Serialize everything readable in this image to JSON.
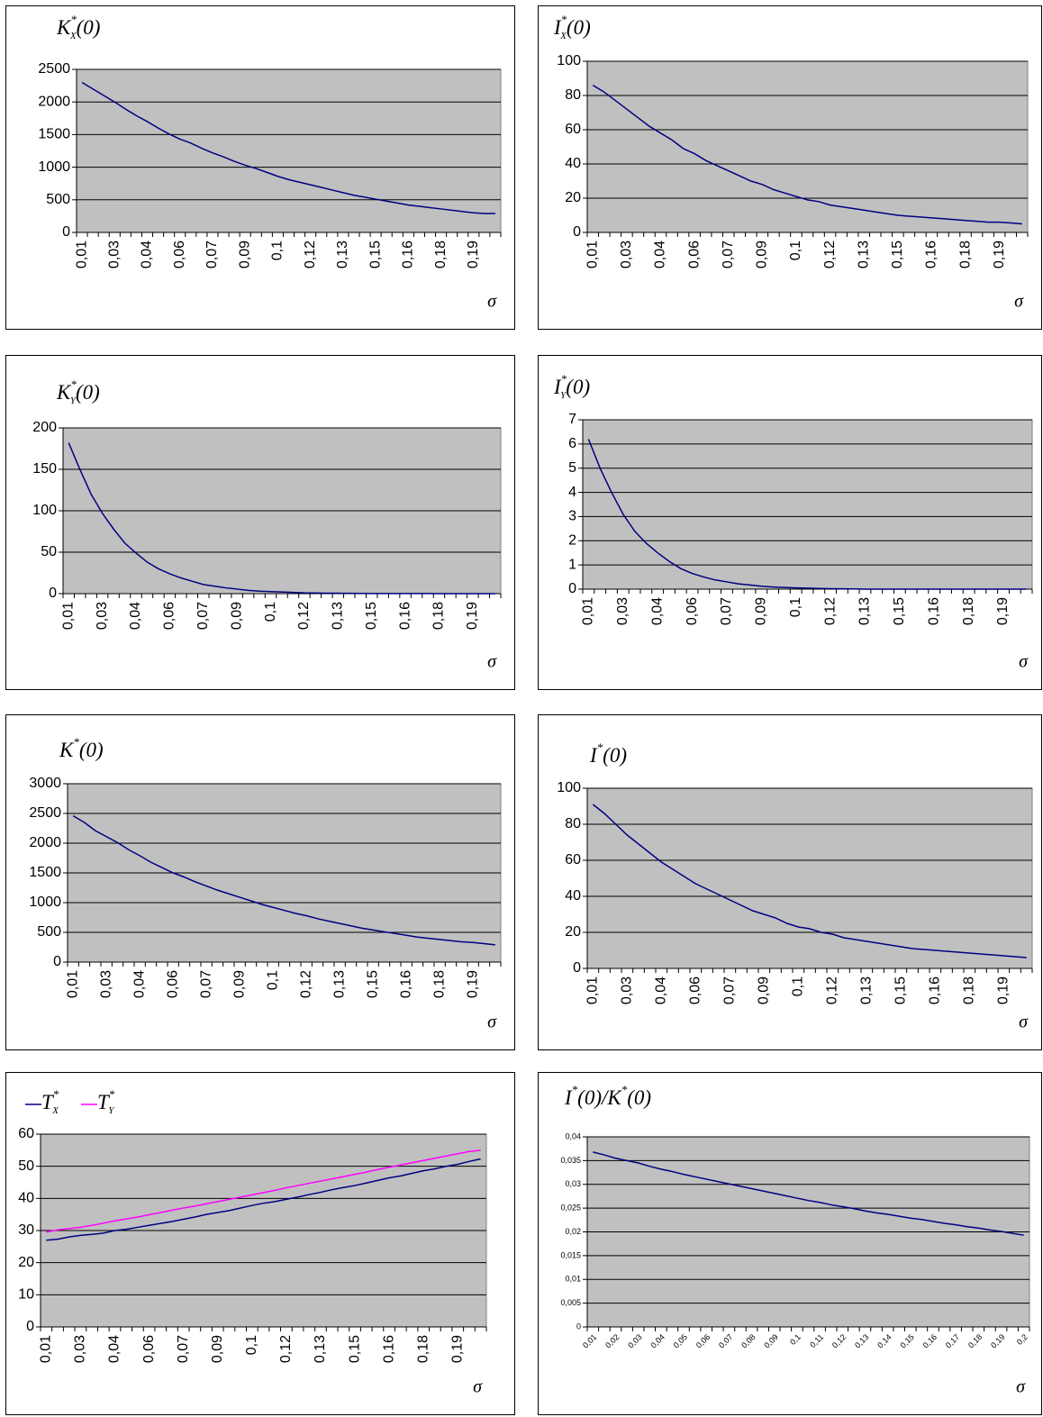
{
  "chart_data": [
    {
      "type": "line",
      "title": [
        {
          "text": "K"
        },
        {
          "text": "*",
          "sup": true
        },
        {
          "text": "X",
          "sub": true
        },
        {
          "text": "(0)"
        }
      ],
      "xlabel": "σ",
      "categories": [
        "0,01",
        null,
        null,
        "0,03",
        null,
        null,
        "0,04",
        null,
        null,
        "0,06",
        null,
        null,
        "0,07",
        null,
        null,
        "0,09",
        null,
        null,
        "0,1",
        null,
        null,
        "0,12",
        null,
        null,
        "0,13",
        null,
        null,
        "0,15",
        null,
        null,
        "0,16",
        null,
        null,
        "0,18",
        null,
        null,
        "0,19",
        null,
        null
      ],
      "series": [
        {
          "color": "#000080",
          "values": [
            2300,
            2200,
            2100,
            2000,
            1890,
            1790,
            1700,
            1600,
            1510,
            1430,
            1370,
            1290,
            1220,
            1160,
            1090,
            1030,
            980,
            920,
            860,
            810,
            770,
            730,
            690,
            650,
            610,
            570,
            540,
            510,
            480,
            450,
            420,
            400,
            380,
            360,
            340,
            320,
            300,
            290,
            290
          ]
        }
      ],
      "ylim": [
        0,
        2500
      ],
      "yticks": [
        0,
        500,
        1000,
        1500,
        2000,
        2500
      ],
      "grid": true
    },
    {
      "type": "line",
      "title": [
        {
          "text": "I"
        },
        {
          "text": "*",
          "sup": true
        },
        {
          "text": "X",
          "sub": true
        },
        {
          "text": "(0)"
        }
      ],
      "xlabel": "σ",
      "categories": [
        "0,01",
        null,
        null,
        "0,03",
        null,
        null,
        "0,04",
        null,
        null,
        "0,06",
        null,
        null,
        "0,07",
        null,
        null,
        "0,09",
        null,
        null,
        "0,1",
        null,
        null,
        "0,12",
        null,
        null,
        "0,13",
        null,
        null,
        "0,15",
        null,
        null,
        "0,16",
        null,
        null,
        "0,18",
        null,
        null,
        "0,19",
        null,
        null
      ],
      "series": [
        {
          "color": "#000080",
          "values": [
            86,
            82,
            77,
            72,
            67,
            62,
            58,
            54,
            49,
            46,
            42,
            39,
            36,
            33,
            30,
            28,
            25,
            23,
            21,
            19,
            18,
            16,
            15,
            14,
            13,
            12,
            11,
            10,
            9.5,
            9,
            8.5,
            8,
            7.5,
            7,
            6.5,
            6,
            6,
            5.5,
            5
          ]
        }
      ],
      "ylim": [
        0,
        100
      ],
      "yticks": [
        0,
        20,
        40,
        60,
        80,
        100
      ],
      "grid": true
    },
    {
      "type": "line",
      "title": [
        {
          "text": "K"
        },
        {
          "text": "*",
          "sup": true
        },
        {
          "text": "Y",
          "sub": true
        },
        {
          "text": "(0)"
        }
      ],
      "xlabel": "σ",
      "categories": [
        "0,01",
        null,
        null,
        "0,03",
        null,
        null,
        "0,04",
        null,
        null,
        "0,06",
        null,
        null,
        "0,07",
        null,
        null,
        "0,09",
        null,
        null,
        "0,1",
        null,
        null,
        "0,12",
        null,
        null,
        "0,13",
        null,
        null,
        "0,15",
        null,
        null,
        "0,16",
        null,
        null,
        "0,18",
        null,
        null,
        "0,19",
        null,
        null
      ],
      "series": [
        {
          "color": "#000080",
          "values": [
            182,
            150,
            120,
            97,
            78,
            61,
            49,
            38,
            30,
            24,
            19,
            15,
            11,
            9,
            7,
            5.5,
            4,
            3,
            2.5,
            2,
            1.5,
            1,
            0.8,
            0.6,
            0.5,
            0.4,
            0.3,
            0.2,
            0.2,
            0.1,
            0.1,
            0.1,
            0.1,
            0,
            0,
            0,
            0,
            0,
            0
          ]
        }
      ],
      "ylim": [
        0,
        200
      ],
      "yticks": [
        0,
        50,
        100,
        150,
        200
      ],
      "grid": true
    },
    {
      "type": "line",
      "title": [
        {
          "text": "I"
        },
        {
          "text": "*",
          "sup": true
        },
        {
          "text": "Y",
          "sub": true
        },
        {
          "text": "(0)"
        }
      ],
      "xlabel": "σ",
      "categories": [
        "0,01",
        null,
        null,
        "0,03",
        null,
        null,
        "0,04",
        null,
        null,
        "0,06",
        null,
        null,
        "0,07",
        null,
        null,
        "0,09",
        null,
        null,
        "0,1",
        null,
        null,
        "0,12",
        null,
        null,
        "0,13",
        null,
        null,
        "0,15",
        null,
        null,
        "0,16",
        null,
        null,
        "0,18",
        null,
        null,
        "0,19",
        null,
        null
      ],
      "series": [
        {
          "color": "#000080",
          "values": [
            6.2,
            5,
            4,
            3.1,
            2.4,
            1.9,
            1.5,
            1.15,
            0.85,
            0.65,
            0.5,
            0.38,
            0.3,
            0.22,
            0.17,
            0.12,
            0.09,
            0.07,
            0.05,
            0.04,
            0.03,
            0.02,
            0.015,
            0.01,
            0,
            0,
            0,
            0,
            0,
            0,
            0,
            0,
            0,
            0,
            0,
            0,
            0,
            0,
            0
          ]
        }
      ],
      "ylim": [
        0,
        7
      ],
      "yticks": [
        0,
        1,
        2,
        3,
        4,
        5,
        6,
        7
      ],
      "grid": true
    },
    {
      "type": "line",
      "title": [
        {
          "text": "K"
        },
        {
          "text": "*",
          "sup": true
        },
        {
          "text": "(0)"
        }
      ],
      "xlabel": "σ",
      "categories": [
        "0,01",
        null,
        null,
        "0,03",
        null,
        null,
        "0,04",
        null,
        null,
        "0,06",
        null,
        null,
        "0,07",
        null,
        null,
        "0,09",
        null,
        null,
        "0,1",
        null,
        null,
        "0,12",
        null,
        null,
        "0,13",
        null,
        null,
        "0,15",
        null,
        null,
        "0,16",
        null,
        null,
        "0,18",
        null,
        null,
        "0,19",
        null,
        null
      ],
      "series": [
        {
          "color": "#000080",
          "values": [
            2460,
            2350,
            2210,
            2110,
            2010,
            1890,
            1790,
            1680,
            1590,
            1500,
            1430,
            1350,
            1280,
            1210,
            1150,
            1090,
            1030,
            970,
            920,
            870,
            820,
            780,
            730,
            690,
            650,
            610,
            570,
            540,
            510,
            480,
            450,
            420,
            400,
            380,
            360,
            340,
            330,
            310,
            290
          ]
        }
      ],
      "ylim": [
        0,
        3000
      ],
      "yticks": [
        0,
        500,
        1000,
        1500,
        2000,
        2500,
        3000
      ],
      "grid": true
    },
    {
      "type": "line",
      "title": [
        {
          "text": "I"
        },
        {
          "text": "*",
          "sup": true
        },
        {
          "text": "(0)"
        }
      ],
      "xlabel": "σ",
      "categories": [
        "0,01",
        null,
        null,
        "0,03",
        null,
        null,
        "0,04",
        null,
        null,
        "0,06",
        null,
        null,
        "0,07",
        null,
        null,
        "0,09",
        null,
        null,
        "0,1",
        null,
        null,
        "0,12",
        null,
        null,
        "0,13",
        null,
        null,
        "0,15",
        null,
        null,
        "0,16",
        null,
        null,
        "0,18",
        null,
        null,
        "0,19",
        null,
        null
      ],
      "series": [
        {
          "color": "#000080",
          "values": [
            91,
            86,
            80,
            74,
            69,
            64,
            59,
            55,
            51,
            47,
            44,
            41,
            38,
            35,
            32,
            30,
            28,
            25,
            23,
            22,
            20,
            19,
            17,
            16,
            15,
            14,
            13,
            12,
            11,
            10.5,
            10,
            9.5,
            9,
            8.5,
            8,
            7.5,
            7,
            6.5,
            6
          ]
        }
      ],
      "ylim": [
        0,
        100
      ],
      "yticks": [
        0,
        20,
        40,
        60,
        80,
        100
      ],
      "grid": true
    },
    {
      "type": "line",
      "xlabel": "σ",
      "categories": [
        "0,01",
        null,
        null,
        "0,03",
        null,
        null,
        "0,04",
        null,
        null,
        "0,06",
        null,
        null,
        "0,07",
        null,
        null,
        "0,09",
        null,
        null,
        "0,1",
        null,
        null,
        "0,12",
        null,
        null,
        "0,13",
        null,
        null,
        "0,15",
        null,
        null,
        "0,16",
        null,
        null,
        "0,18",
        null,
        null,
        "0,19",
        null,
        null
      ],
      "series": [
        {
          "name": [
            {
              "text": "T"
            },
            {
              "text": "*",
              "sup": true
            },
            {
              "text": "X",
              "sub": true
            }
          ],
          "color": "#000080",
          "values": [
            27,
            27.3,
            28,
            28.5,
            28.8,
            29.2,
            30,
            30.4,
            31,
            31.6,
            32.2,
            32.8,
            33.5,
            34.2,
            35,
            35.6,
            36.2,
            37,
            37.8,
            38.5,
            39,
            39.7,
            40.4,
            41.2,
            41.9,
            42.7,
            43.4,
            44,
            44.8,
            45.6,
            46.4,
            47,
            47.8,
            48.6,
            49.2,
            50,
            50.6,
            51.5,
            52.3
          ]
        },
        {
          "name": [
            {
              "text": "T"
            },
            {
              "text": "*",
              "sup": true
            },
            {
              "text": "Y",
              "sub": true
            }
          ],
          "color": "#ff00ff",
          "values": [
            29.5,
            30.2,
            30.6,
            31,
            31.6,
            32.3,
            33,
            33.6,
            34.2,
            34.9,
            35.6,
            36.3,
            37,
            37.6,
            38.3,
            39,
            39.7,
            40.4,
            41.1,
            41.8,
            42.5,
            43.3,
            44,
            44.7,
            45.4,
            46.1,
            46.8,
            47.5,
            48.2,
            49,
            49.7,
            50.4,
            51.1,
            51.8,
            52.5,
            53.2,
            53.9,
            54.6,
            55
          ]
        }
      ],
      "ylim": [
        0,
        60
      ],
      "yticks": [
        0,
        10,
        20,
        30,
        40,
        50,
        60
      ],
      "grid": true
    },
    {
      "type": "line",
      "title": [
        {
          "text": "I"
        },
        {
          "text": "*",
          "sup": true
        },
        {
          "text": "(0)/K"
        },
        {
          "text": "*",
          "sup": true
        },
        {
          "text": "(0)"
        }
      ],
      "xlabel": "σ",
      "categories": [
        "0,01",
        null,
        "0,02",
        null,
        "0,03",
        null,
        "0,04",
        null,
        "0,05",
        null,
        "0,06",
        null,
        "0,07",
        null,
        "0,08",
        null,
        "0,09",
        null,
        "0,1",
        null,
        "0,11",
        null,
        "0,12",
        null,
        "0,13",
        null,
        "0,14",
        null,
        "0,15",
        null,
        "0,16",
        null,
        "0,17",
        null,
        "0,18",
        null,
        "0,19",
        null,
        "0,2"
      ],
      "series": [
        {
          "color": "#000080",
          "values": [
            0.0368,
            0.0362,
            0.0355,
            0.035,
            0.0345,
            0.0338,
            0.0332,
            0.0327,
            0.0321,
            0.0316,
            0.0311,
            0.0306,
            0.0301,
            0.0296,
            0.0291,
            0.0286,
            0.0281,
            0.0276,
            0.0271,
            0.0266,
            0.0262,
            0.0257,
            0.0253,
            0.0249,
            0.0244,
            0.024,
            0.0237,
            0.0233,
            0.0229,
            0.0226,
            0.0222,
            0.0218,
            0.0215,
            0.0211,
            0.0208,
            0.0204,
            0.0201,
            0.0197,
            0.0193
          ]
        }
      ],
      "ylim": [
        0,
        0.04
      ],
      "yticks": [
        0,
        {
          "value": 0.005,
          "label": "0,005"
        },
        {
          "value": 0.01,
          "label": "0,01"
        },
        {
          "value": 0.015,
          "label": "0,015"
        },
        {
          "value": 0.02,
          "label": "0,02"
        },
        {
          "value": 0.025,
          "label": "0,025"
        },
        {
          "value": 0.03,
          "label": "0,03"
        },
        {
          "value": 0.035,
          "label": "0,035"
        },
        {
          "value": 0.04,
          "label": "0,04"
        }
      ],
      "grid": true
    }
  ]
}
